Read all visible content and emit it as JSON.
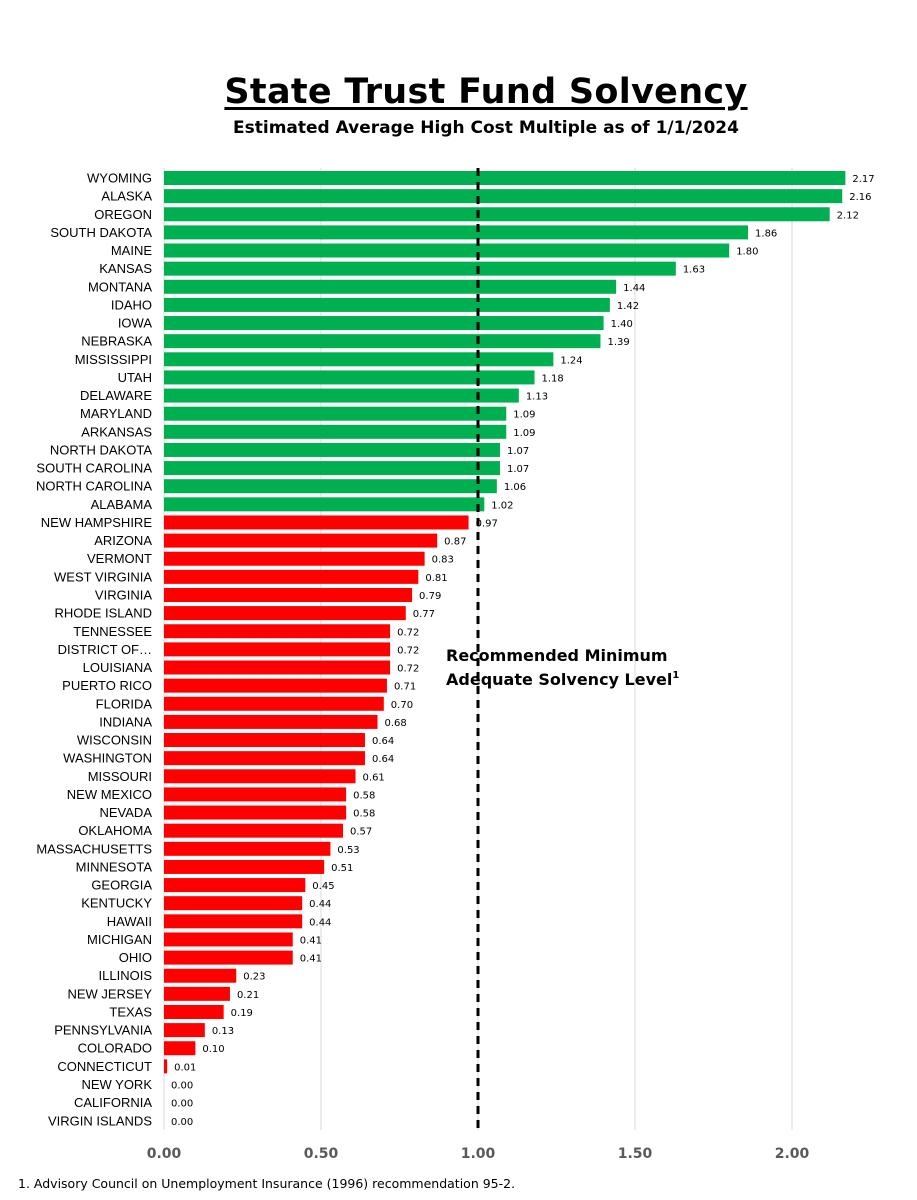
{
  "header": {
    "title": "State Trust Fund Solvency",
    "subtitle": "Estimated Average High Cost Multiple as of 1/1/2024"
  },
  "footnote": "1. Advisory Council on Unemployment Insurance (1996) recommendation 95-2.",
  "colors": {
    "above_threshold": "#00b050",
    "below_threshold": "#ff0000",
    "gridline": "#d9d9d9",
    "reference_line": "#000000"
  },
  "chart_data": {
    "type": "bar",
    "orientation": "horizontal",
    "title": "State Trust Fund Solvency",
    "subtitle": "Estimated Average High Cost Multiple as of 1/1/2024",
    "xlabel": "",
    "ylabel": "",
    "xlim": [
      0,
      2.2
    ],
    "xticks": [
      "0.00",
      "0.50",
      "1.00",
      "1.50",
      "2.00"
    ],
    "xtick_values": [
      0,
      0.5,
      1.0,
      1.5,
      2.0
    ],
    "grid": "vertical",
    "reference_line": {
      "value": 1.0,
      "style": "dashed",
      "label_line1": "Recommended Minimum",
      "label_line2": "Adequate Solvency Level",
      "label_sup": "1"
    },
    "categories": [
      "WYOMING",
      "ALASKA",
      "OREGON",
      "SOUTH DAKOTA",
      "MAINE",
      "KANSAS",
      "MONTANA",
      "IDAHO",
      "IOWA",
      "NEBRASKA",
      "MISSISSIPPI",
      "UTAH",
      "DELAWARE",
      "MARYLAND",
      "ARKANSAS",
      "NORTH DAKOTA",
      "SOUTH CAROLINA",
      "NORTH CAROLINA",
      "ALABAMA",
      "NEW HAMPSHIRE",
      "ARIZONA",
      "VERMONT",
      "WEST VIRGINIA",
      "VIRGINIA",
      "RHODE ISLAND",
      "TENNESSEE",
      "DISTRICT OF…",
      "LOUISIANA",
      "PUERTO RICO",
      "FLORIDA",
      "INDIANA",
      "WISCONSIN",
      "WASHINGTON",
      "MISSOURI",
      "NEW MEXICO",
      "NEVADA",
      "OKLAHOMA",
      "MASSACHUSETTS",
      "MINNESOTA",
      "GEORGIA",
      "KENTUCKY",
      "HAWAII",
      "MICHIGAN",
      "OHIO",
      "ILLINOIS",
      "NEW JERSEY",
      "TEXAS",
      "PENNSYLVANIA",
      "COLORADO",
      "CONNECTICUT",
      "NEW YORK",
      "CALIFORNIA",
      "VIRGIN ISLANDS"
    ],
    "values": [
      2.17,
      2.16,
      2.12,
      1.86,
      1.8,
      1.63,
      1.44,
      1.42,
      1.4,
      1.39,
      1.24,
      1.18,
      1.13,
      1.09,
      1.09,
      1.07,
      1.07,
      1.06,
      1.02,
      0.97,
      0.87,
      0.83,
      0.81,
      0.79,
      0.77,
      0.72,
      0.72,
      0.72,
      0.71,
      0.7,
      0.68,
      0.64,
      0.64,
      0.61,
      0.58,
      0.58,
      0.57,
      0.53,
      0.51,
      0.45,
      0.44,
      0.44,
      0.41,
      0.41,
      0.23,
      0.21,
      0.19,
      0.13,
      0.1,
      0.01,
      0.0,
      0.0,
      0.0
    ],
    "labels": [
      "2.17",
      "2.16",
      "2.12",
      "1.86",
      "1.80",
      "1.63",
      "1.44",
      "1.42",
      "1.40",
      "1.39",
      "1.24",
      "1.18",
      "1.13",
      "1.09",
      "1.09",
      "1.07",
      "1.07",
      "1.06",
      "1.02",
      "0.97",
      "0.87",
      "0.83",
      "0.81",
      "0.79",
      "0.77",
      "0.72",
      "0.72",
      "0.72",
      "0.71",
      "0.70",
      "0.68",
      "0.64",
      "0.64",
      "0.61",
      "0.58",
      "0.58",
      "0.57",
      "0.53",
      "0.51",
      "0.45",
      "0.44",
      "0.44",
      "0.41",
      "0.41",
      "0.23",
      "0.21",
      "0.19",
      "0.13",
      "0.10",
      "0.01",
      "0.00",
      "0.00",
      "0.00"
    ]
  }
}
